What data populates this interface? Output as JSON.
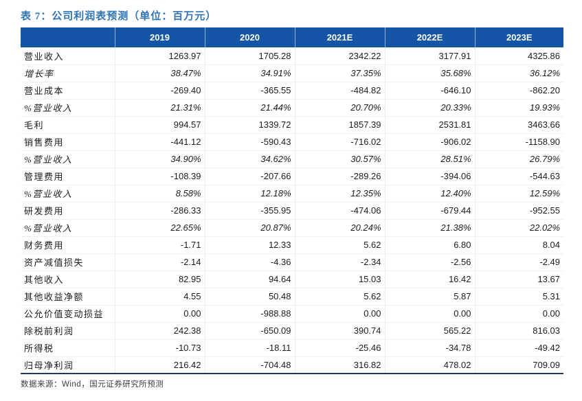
{
  "title": "表 7：公司利润表预测（单位：百万元）",
  "table": {
    "columns": [
      "",
      "2019",
      "2020",
      "2021E",
      "2022E",
      "2023E"
    ],
    "rows": [
      {
        "label": "营业收入",
        "italic": false,
        "values": [
          "1263.97",
          "1705.28",
          "2342.22",
          "3177.91",
          "4325.86"
        ]
      },
      {
        "label": "增长率",
        "italic": true,
        "values": [
          "38.47%",
          "34.91%",
          "37.35%",
          "35.68%",
          "36.12%"
        ]
      },
      {
        "label": "营业成本",
        "italic": false,
        "values": [
          "-269.40",
          "-365.55",
          "-484.82",
          "-646.10",
          "-862.20"
        ]
      },
      {
        "label": "%营业收入",
        "italic": true,
        "values": [
          "21.31%",
          "21.44%",
          "20.70%",
          "20.33%",
          "19.93%"
        ]
      },
      {
        "label": "毛利",
        "italic": false,
        "values": [
          "994.57",
          "1339.72",
          "1857.39",
          "2531.81",
          "3463.66"
        ]
      },
      {
        "label": "销售费用",
        "italic": false,
        "values": [
          "-441.12",
          "-590.43",
          "-716.02",
          "-906.02",
          "-1158.90"
        ]
      },
      {
        "label": "%营业收入",
        "italic": true,
        "values": [
          "34.90%",
          "34.62%",
          "30.57%",
          "28.51%",
          "26.79%"
        ]
      },
      {
        "label": "管理费用",
        "italic": false,
        "values": [
          "-108.39",
          "-207.66",
          "-289.26",
          "-394.06",
          "-544.63"
        ]
      },
      {
        "label": "%营业收入",
        "italic": true,
        "values": [
          "8.58%",
          "12.18%",
          "12.35%",
          "12.40%",
          "12.59%"
        ]
      },
      {
        "label": "研发费用",
        "italic": false,
        "values": [
          "-286.33",
          "-355.95",
          "-474.06",
          "-679.44",
          "-952.55"
        ]
      },
      {
        "label": "%营业收入",
        "italic": true,
        "values": [
          "22.65%",
          "20.87%",
          "20.24%",
          "21.38%",
          "22.02%"
        ]
      },
      {
        "label": "财务费用",
        "italic": false,
        "values": [
          "-1.71",
          "12.33",
          "5.62",
          "6.80",
          "8.04"
        ]
      },
      {
        "label": "资产减值损失",
        "italic": false,
        "values": [
          "-2.14",
          "-4.36",
          "-2.34",
          "-2.56",
          "-2.49"
        ]
      },
      {
        "label": "其他收入",
        "italic": false,
        "values": [
          "82.95",
          "94.64",
          "15.03",
          "16.42",
          "13.67"
        ]
      },
      {
        "label": "其他收益净额",
        "italic": false,
        "values": [
          "4.55",
          "50.48",
          "5.62",
          "5.87",
          "5.31"
        ]
      },
      {
        "label": "公允价值变动损益",
        "italic": false,
        "values": [
          "0.00",
          "-988.88",
          "0.00",
          "0.00",
          "0.00"
        ]
      },
      {
        "label": "除税前利润",
        "italic": false,
        "values": [
          "242.38",
          "-650.09",
          "390.74",
          "565.22",
          "816.03"
        ]
      },
      {
        "label": "所得税",
        "italic": false,
        "values": [
          "-10.73",
          "-18.11",
          "-25.46",
          "-34.78",
          "-49.42"
        ]
      },
      {
        "label": "归母净利润",
        "italic": false,
        "values": [
          "216.42",
          "-704.48",
          "316.82",
          "478.02",
          "709.09"
        ]
      }
    ]
  },
  "footer": {
    "source_label": "数据来源：",
    "source_text": "Wind，国元证券研究所预测"
  },
  "colors": {
    "title_blue": "#2e74b5",
    "header_bg": "#1456a5",
    "header_text": "#ffffff",
    "table_bottom_line": "#1f3864"
  }
}
